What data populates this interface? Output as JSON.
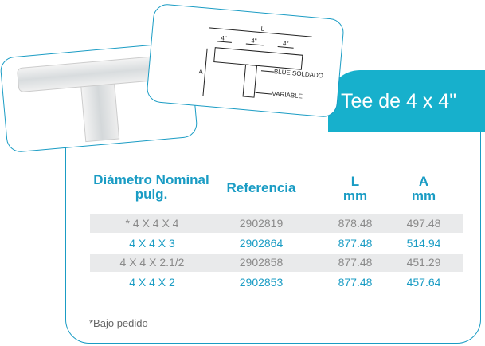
{
  "diagram": {
    "labels": [
      "L",
      "4\"",
      "4\"",
      "4\"",
      "A",
      "BLUE SOLDADO",
      "VARIABLE"
    ]
  },
  "title": "Tee de 4 x 4\"",
  "table": {
    "headers": [
      [
        "Diámetro Nominal",
        "pulg."
      ],
      [
        "Referencia"
      ],
      [
        "L",
        "mm"
      ],
      [
        "A",
        "mm"
      ]
    ],
    "rows": [
      [
        "* 4 X 4 X 4",
        "2902819",
        "878.48",
        "497.48"
      ],
      [
        "4 X 4 X 3",
        "2902864",
        "877.48",
        "514.94"
      ],
      [
        "4 X 4 X 2.1/2",
        "2902858",
        "877.48",
        "451.29"
      ],
      [
        "4 X 4 X 2",
        "2902853",
        "877.48",
        "457.64"
      ]
    ]
  },
  "footnote": "*Bajo pedido"
}
